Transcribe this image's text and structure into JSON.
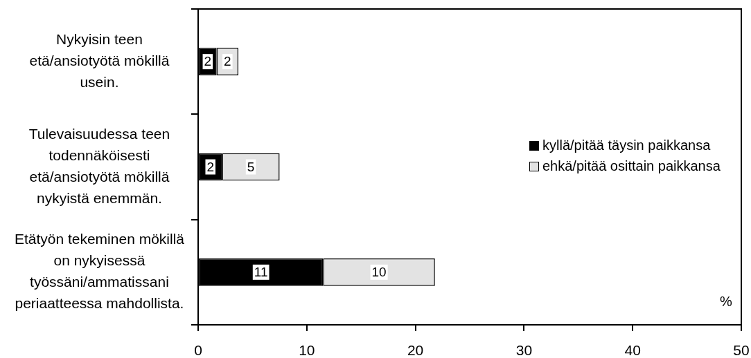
{
  "chart_data": {
    "type": "bar",
    "orientation": "horizontal",
    "stacked": true,
    "categories": [
      "Nykyisin teen etä/ansiotyötä mökillä usein.",
      "Tulevaisuudessa teen todennäköisesti etä/ansiotyötä mökillä nykyistä enemmän.",
      "Etätyön tekeminen mökillä on nykyisessä työssäni/ammatissani periaatteessa mahdollista."
    ],
    "series": [
      {
        "name": "kyllä/pitää täysin paikkansa",
        "color": "#000000",
        "values": [
          1.7,
          2.2,
          11.5
        ],
        "value_labels": [
          "2",
          "2",
          "11"
        ]
      },
      {
        "name": "ehkä/pitää osittain paikkansa",
        "color": "#e3e3e3",
        "values": [
          2.0,
          5.3,
          10.3
        ],
        "value_labels": [
          "2",
          "5",
          "10"
        ]
      }
    ],
    "xlabel": "%",
    "xlim": [
      0,
      50
    ],
    "xticks": [
      0,
      10,
      20,
      30,
      40,
      50
    ],
    "legend": "right",
    "grid": false
  }
}
